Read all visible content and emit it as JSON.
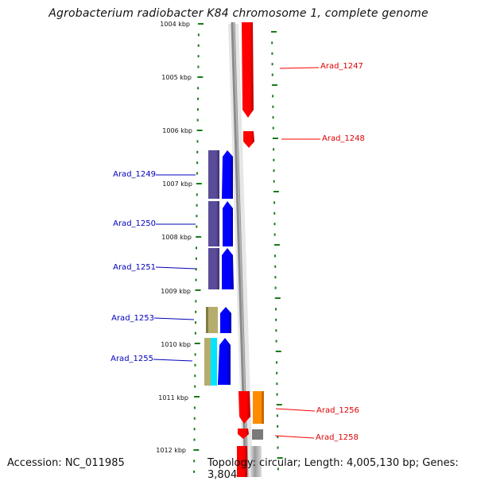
{
  "title": "Agrobacterium radiobacter K84 chromosome 1, complete genome",
  "accession": "Accession: NC_011985",
  "topology": "Topology: circular; Length: 4,005,130 bp; Genes: 3,804",
  "scale_labels": [
    "1004 kbp",
    "1005 kbp",
    "1006 kbp",
    "1007 kbp",
    "1008 kbp",
    "1009 kbp",
    "1010 kbp",
    "1011 kbp",
    "1012 kbp"
  ],
  "genes": {
    "right": [
      {
        "label": "Arad_1247",
        "color": "#ff0000"
      },
      {
        "label": "Arad_1248",
        "color": "#ff0000"
      },
      {
        "label": "Arad_1256",
        "color": "#ff0000"
      },
      {
        "label": "Arad_1258",
        "color": "#ff0000"
      }
    ],
    "left": [
      {
        "label": "Arad_1249",
        "color": "#0000ff"
      },
      {
        "label": "Arad_1250",
        "color": "#0000ff"
      },
      {
        "label": "Arad_1251",
        "color": "#0000ff"
      },
      {
        "label": "Arad_1253",
        "color": "#0000ff"
      },
      {
        "label": "Arad_1255",
        "color": "#0000ff"
      }
    ]
  },
  "colors": {
    "forward_strand": "#ff0000",
    "reverse_strand": "#0000ff",
    "cog_purple": "#5a4c99",
    "cog_khaki": "#b5ad6e",
    "cog_cyan": "#00e5ff",
    "cog_orange": "#ff8c00",
    "cog_gray": "#7a7a7a",
    "tick_green": "#1a7a1a",
    "backbone": "#888888"
  }
}
